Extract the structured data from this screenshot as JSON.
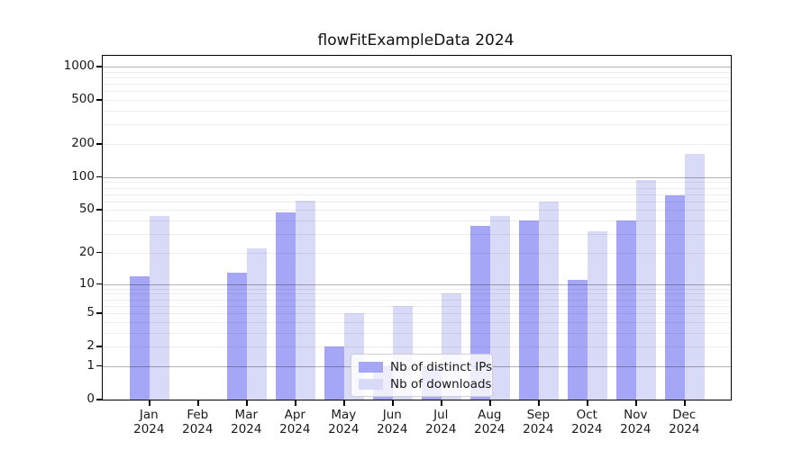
{
  "title": "flowFitExampleData 2024",
  "colors": {
    "distinct_ips": "#a6a6f7",
    "downloads": "#d9d9f8",
    "spine": "#000000",
    "major_grid": "#b0b0b0",
    "minor_grid": "#e8e8e8"
  },
  "legend": {
    "items": [
      {
        "label": "Nb of distinct IPs",
        "color": "#a6a6f7"
      },
      {
        "label": "Nb of downloads",
        "color": "#d9d9f8"
      }
    ],
    "position": "lower center"
  },
  "chart_data": {
    "type": "bar",
    "title": "flowFitExampleData 2024",
    "xlabel": "",
    "ylabel": "",
    "categories": [
      "Jan 2024",
      "Feb 2024",
      "Mar 2024",
      "Apr 2024",
      "May 2024",
      "Jun 2024",
      "Jul 2024",
      "Aug 2024",
      "Sep 2024",
      "Oct 2024",
      "Nov 2024",
      "Dec 2024"
    ],
    "series": [
      {
        "name": "Nb of distinct IPs",
        "color": "#a6a6f7",
        "values": [
          12,
          0,
          13,
          48,
          2,
          1,
          1,
          36,
          40,
          11,
          40,
          68
        ]
      },
      {
        "name": "Nb of downloads",
        "color": "#d9d9f8",
        "values": [
          44,
          0,
          22,
          61,
          5,
          6,
          8,
          44,
          60,
          32,
          95,
          164
        ]
      }
    ],
    "yscale": "log1p",
    "ylim": [
      0,
      1265
    ],
    "ytick_values": [
      0,
      1,
      2,
      5,
      10,
      20,
      50,
      100,
      200,
      500,
      1000
    ],
    "ytick_labels": [
      "0",
      "1",
      "2",
      "5",
      "10",
      "20",
      "50",
      "100",
      "200",
      "500",
      "1000"
    ],
    "major_grid_values": [
      1,
      10,
      100,
      1000
    ],
    "grid": true,
    "legend_position": "lower center"
  }
}
